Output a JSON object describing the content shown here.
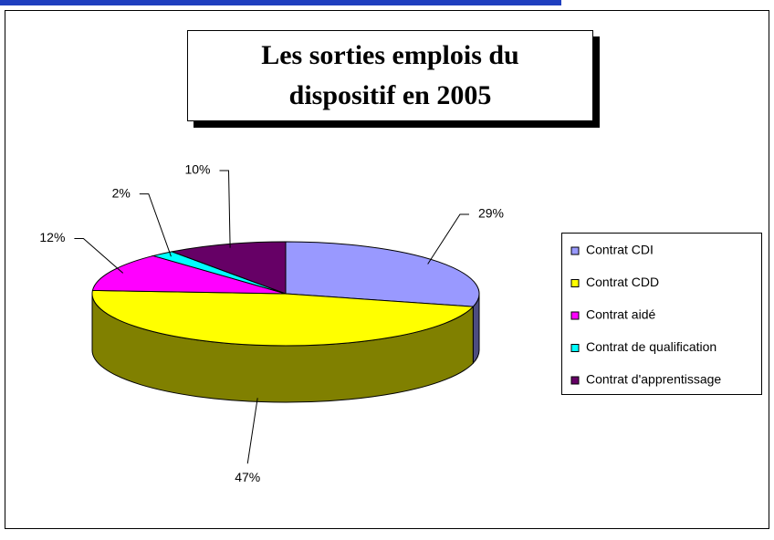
{
  "chart_data": {
    "type": "pie3d",
    "title": "Les sorties emplois du dispositif en 2005",
    "categories": [
      "Contrat CDI",
      "Contrat CDD",
      "Contrat aidé",
      "Contrat de qualification",
      "Contrat d'apprentissage"
    ],
    "values": [
      29,
      47,
      12,
      2,
      10
    ],
    "value_labels": [
      "29%",
      "47%",
      "12%",
      "2%",
      "10%"
    ],
    "colors": [
      "#9999ff",
      "#ffff00",
      "#ff00ff",
      "#00ffff",
      "#660066"
    ],
    "legend": "right"
  }
}
